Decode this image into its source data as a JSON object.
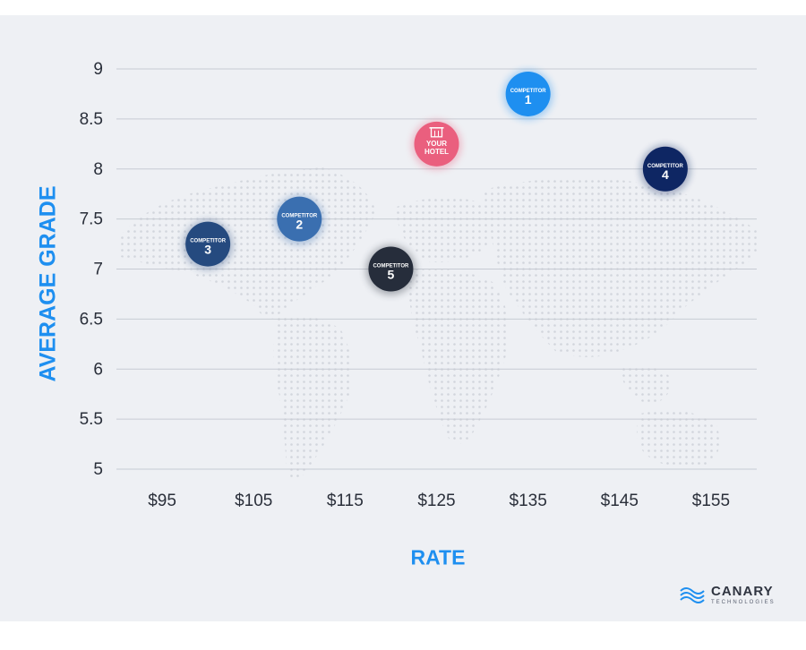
{
  "chart_data": {
    "type": "scatter",
    "xlabel": "RATE",
    "ylabel": "AVERAGE GRADE",
    "x_ticks": [
      "$95",
      "$105",
      "$115",
      "$125",
      "$135",
      "$145",
      "$155"
    ],
    "x_tick_values": [
      95,
      105,
      115,
      125,
      135,
      145,
      155
    ],
    "y_ticks": [
      "5",
      "5.5",
      "6",
      "6.5",
      "7",
      "7.5",
      "8",
      "8.5",
      "9"
    ],
    "y_tick_values": [
      5,
      5.5,
      6,
      6.5,
      7,
      7.5,
      8,
      8.5,
      9
    ],
    "xlim": [
      90,
      160
    ],
    "ylim": [
      5,
      9
    ],
    "grid": "horizontal",
    "points": [
      {
        "line1": "COMPETITOR",
        "line2": "1",
        "x": 135,
        "y": 8.75,
        "color": "#1e8ff0"
      },
      {
        "line1": "COMPETITOR",
        "line2": "2",
        "x": 110,
        "y": 7.5,
        "color": "#3a6fb0"
      },
      {
        "line1": "COMPETITOR",
        "line2": "3",
        "x": 100,
        "y": 7.25,
        "color": "#254a7f"
      },
      {
        "line1": "COMPETITOR",
        "line2": "4",
        "x": 150,
        "y": 8.0,
        "color": "#0e2663"
      },
      {
        "line1": "COMPETITOR",
        "line2": "5",
        "x": 120,
        "y": 7.0,
        "color": "#262d3b"
      },
      {
        "line1": "YOUR",
        "line2": "HOTEL",
        "x": 125,
        "y": 8.25,
        "color": "#ea5f7e",
        "icon": "hotel-building-icon"
      }
    ]
  },
  "branding": {
    "logo_icon": "canary-wave-logo-icon",
    "name": "CANARY",
    "subtitle": "TECHNOLOGIES"
  }
}
